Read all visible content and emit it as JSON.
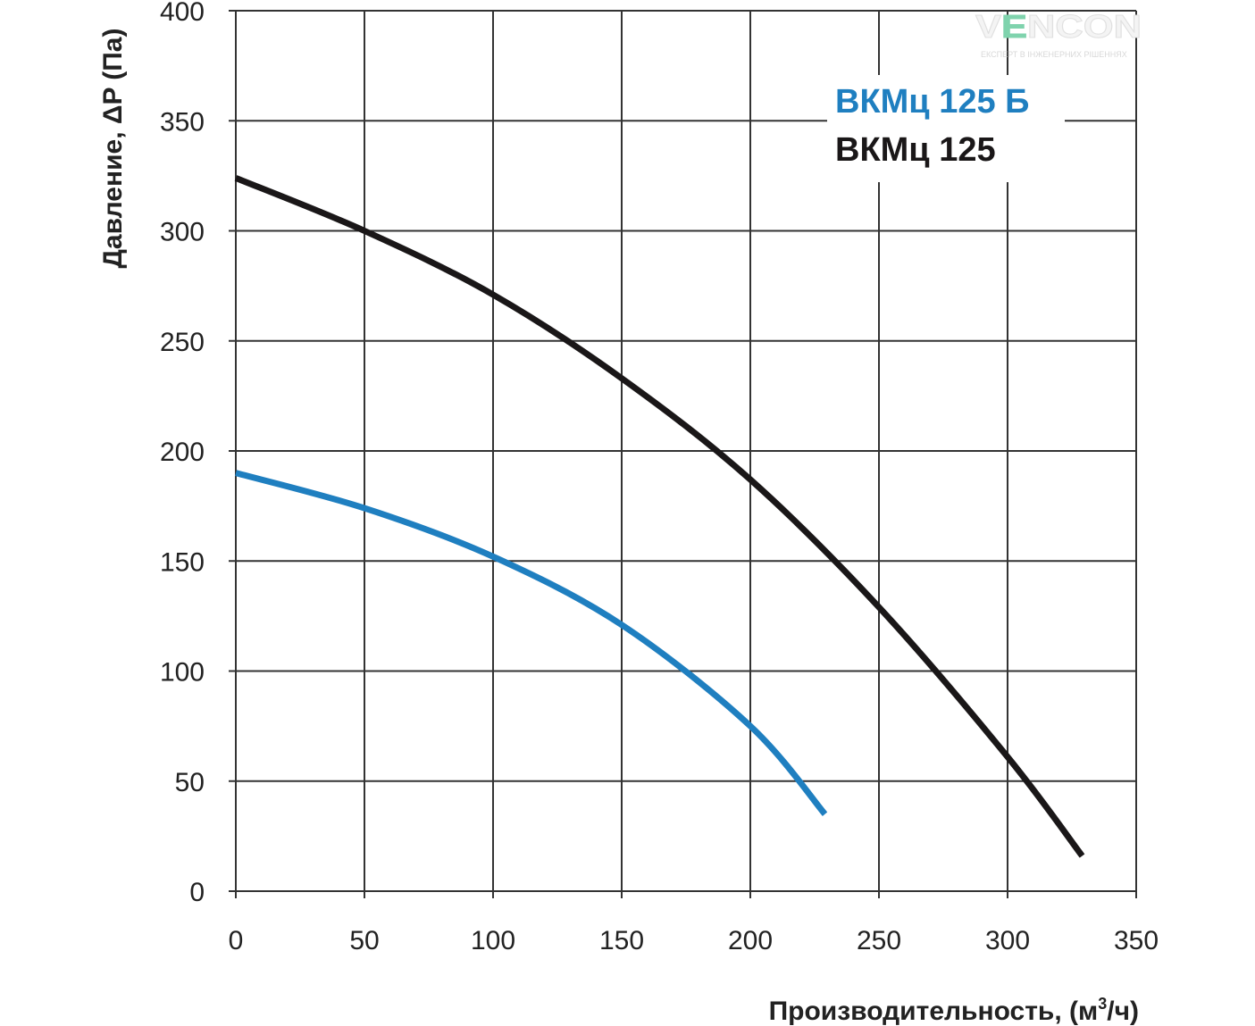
{
  "chart_data": {
    "type": "line",
    "title": "",
    "xlabel": "Производительность, (м³/ч)",
    "xlabel_main": "Производительность, (м",
    "xlabel_sup": "3",
    "xlabel_end": "/ч)",
    "ylabel": "Давление, ΔP (Па)",
    "xlim": [
      0,
      350
    ],
    "ylim": [
      0,
      400
    ],
    "xticks": [
      0,
      50,
      100,
      150,
      200,
      250,
      300,
      350
    ],
    "yticks": [
      0,
      50,
      100,
      150,
      200,
      250,
      300,
      350,
      400
    ],
    "grid": true,
    "legend_position": "top-right",
    "series": [
      {
        "name": "ВКМц 125 Б",
        "color": "#1f7fc0",
        "x": [
          0,
          50,
          100,
          150,
          200,
          229
        ],
        "y": [
          190,
          174,
          152,
          121,
          75,
          35
        ]
      },
      {
        "name": "ВКМц 125",
        "color": "#1a1718",
        "x": [
          0,
          50,
          100,
          150,
          200,
          250,
          300,
          329
        ],
        "y": [
          324,
          300,
          271,
          233,
          187,
          129,
          61,
          16
        ]
      }
    ]
  },
  "watermark": {
    "brand": "VENCON",
    "tagline": "ЕКСПЕРТ В ІНЖЕНЕРНИХ РІШЕННЯХ"
  }
}
